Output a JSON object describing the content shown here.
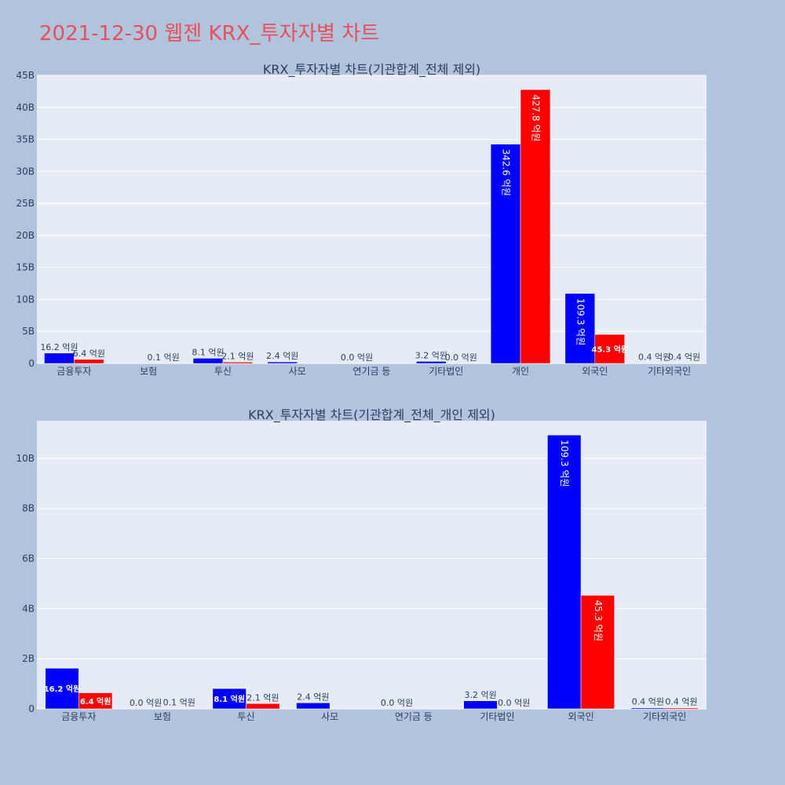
{
  "page": {
    "title": "2021-12-30 웹젠 KRX_투자자별 차트"
  },
  "colors": {
    "buy": "#0000ff",
    "sell": "#ff0000",
    "plot_bg": "#e5ecf6",
    "page_bg": "#b0c4de",
    "title": "#e8505b"
  },
  "chart_data": [
    {
      "type": "bar",
      "title": "KRX_투자자별 차트(기관합계_전체 제외)",
      "categories": [
        "금융투자",
        "보험",
        "투신",
        "사모",
        "연기금 등",
        "기타법인",
        "개인",
        "외국인",
        "기타외국인"
      ],
      "series": [
        {
          "values": [
            1620000000,
            0,
            810000000,
            240000000,
            0,
            320000000,
            34260000000,
            10930000000,
            40000000
          ],
          "labels": [
            "16.2 억원",
            "",
            "8.1 억원",
            "2.4 억원",
            "0.0 억원",
            "3.2 억원",
            "342.6 억원",
            "109.3 억원",
            "0.4 억원"
          ]
        },
        {
          "values": [
            640000000,
            10000000,
            210000000,
            0,
            0,
            0,
            42780000000,
            4530000000,
            40000000
          ],
          "labels": [
            "6.4 억원",
            "0.1 억원",
            "2.1 억원",
            "",
            "",
            "0.0 억원",
            "427.8 억원",
            "45.3 억원",
            "0.4 억원"
          ]
        }
      ],
      "ylim": [
        0,
        45000000000
      ],
      "yticks": [
        0,
        5000000000,
        10000000000,
        15000000000,
        20000000000,
        25000000000,
        30000000000,
        35000000000,
        40000000000,
        45000000000
      ],
      "yticklabels": [
        "0",
        "5B",
        "10B",
        "15B",
        "20B",
        "25B",
        "30B",
        "35B",
        "40B",
        "45B"
      ],
      "grid": true
    },
    {
      "type": "bar",
      "title": "KRX_투자자별 차트(기관합계_전체_개인 제외)",
      "categories": [
        "금융투자",
        "보험",
        "투신",
        "사모",
        "연기금 등",
        "기타법인",
        "외국인",
        "기타외국인"
      ],
      "series": [
        {
          "values": [
            1620000000,
            0,
            810000000,
            240000000,
            0,
            320000000,
            10930000000,
            40000000
          ],
          "labels": [
            "16.2 억원",
            "0.0 억원",
            "8.1 억원",
            "2.4 억원",
            "0.0 억원",
            "3.2 억원",
            "109.3 억원",
            "0.4 억원"
          ]
        },
        {
          "values": [
            640000000,
            10000000,
            210000000,
            0,
            0,
            0,
            4530000000,
            40000000
          ],
          "labels": [
            "6.4 억원",
            "0.1 억원",
            "2.1 억원",
            "",
            "",
            "0.0 억원",
            "45.3 억원",
            "0.4 억원"
          ]
        }
      ],
      "ylim": [
        0,
        11500000000
      ],
      "yticks": [
        0,
        2000000000,
        4000000000,
        6000000000,
        8000000000,
        10000000000
      ],
      "yticklabels": [
        "0",
        "2B",
        "4B",
        "6B",
        "8B",
        "10B"
      ],
      "grid": true
    }
  ]
}
